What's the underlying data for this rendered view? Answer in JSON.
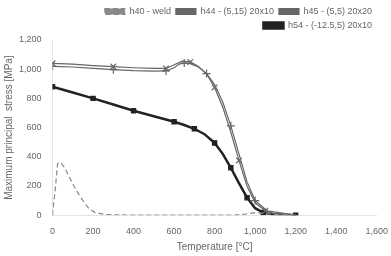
{
  "chart_data": {
    "type": "line",
    "xlabel": "Temperature [°C]",
    "ylabel": "Maximum principal  stress [MPa]",
    "xlim": [
      0,
      1600
    ],
    "ylim": [
      0,
      1200
    ],
    "xticks": [
      0,
      200,
      400,
      600,
      800,
      1000,
      1200,
      1400,
      1600
    ],
    "yticks": [
      0,
      200,
      400,
      600,
      800,
      1000,
      1200
    ],
    "grid": false,
    "legend": "upper right",
    "series": [
      {
        "name": "h40 - weld",
        "color": "#888888",
        "line_style": "dashed",
        "marker": "none",
        "x": [
          0,
          15,
          25,
          40,
          60,
          80,
          100,
          120,
          140,
          160,
          180,
          210,
          260,
          320,
          400,
          600,
          800,
          900,
          950,
          1000,
          1100,
          1200
        ],
        "values": [
          0,
          200,
          355,
          360,
          325,
          270,
          215,
          165,
          120,
          80,
          45,
          18,
          5,
          2,
          1,
          1,
          1,
          1,
          8,
          18,
          5,
          0
        ]
      },
      {
        "name": "h44 - (5,15) 20x10",
        "color": "#666666",
        "line_style": "solid",
        "marker": "x",
        "x": [
          0,
          100,
          200,
          300,
          400,
          500,
          560,
          600,
          640,
          680,
          720,
          760,
          800,
          840,
          880,
          920,
          960,
          1000,
          1050,
          1100,
          1200
        ],
        "values": [
          1040,
          1035,
          1025,
          1018,
          1010,
          1005,
          1005,
          1030,
          1055,
          1050,
          1018,
          968,
          875,
          740,
          568,
          375,
          198,
          85,
          30,
          10,
          0
        ]
      },
      {
        "name": "h45 - (5,5) 20x20",
        "color": "#666666",
        "line_style": "solid",
        "marker": "plus",
        "x": [
          0,
          100,
          200,
          300,
          400,
          500,
          560,
          600,
          625,
          650,
          680,
          720,
          760,
          800,
          840,
          880,
          920,
          960,
          1000,
          1060,
          1200
        ],
        "values": [
          1020,
          1015,
          1005,
          997,
          990,
          987,
          988,
          1010,
          1035,
          1042,
          1038,
          1015,
          970,
          895,
          775,
          612,
          420,
          228,
          100,
          30,
          0
        ]
      },
      {
        "name": "h54 - (-12.5,5) 20x10",
        "color": "#222222",
        "line_style": "solid",
        "marker": "square",
        "x": [
          0,
          100,
          200,
          300,
          400,
          500,
          600,
          650,
          700,
          750,
          800,
          840,
          880,
          920,
          960,
          1000,
          1040,
          1080,
          1200
        ],
        "values": [
          880,
          840,
          800,
          758,
          715,
          678,
          640,
          618,
          592,
          555,
          495,
          420,
          325,
          220,
          120,
          48,
          18,
          6,
          0
        ]
      }
    ]
  }
}
